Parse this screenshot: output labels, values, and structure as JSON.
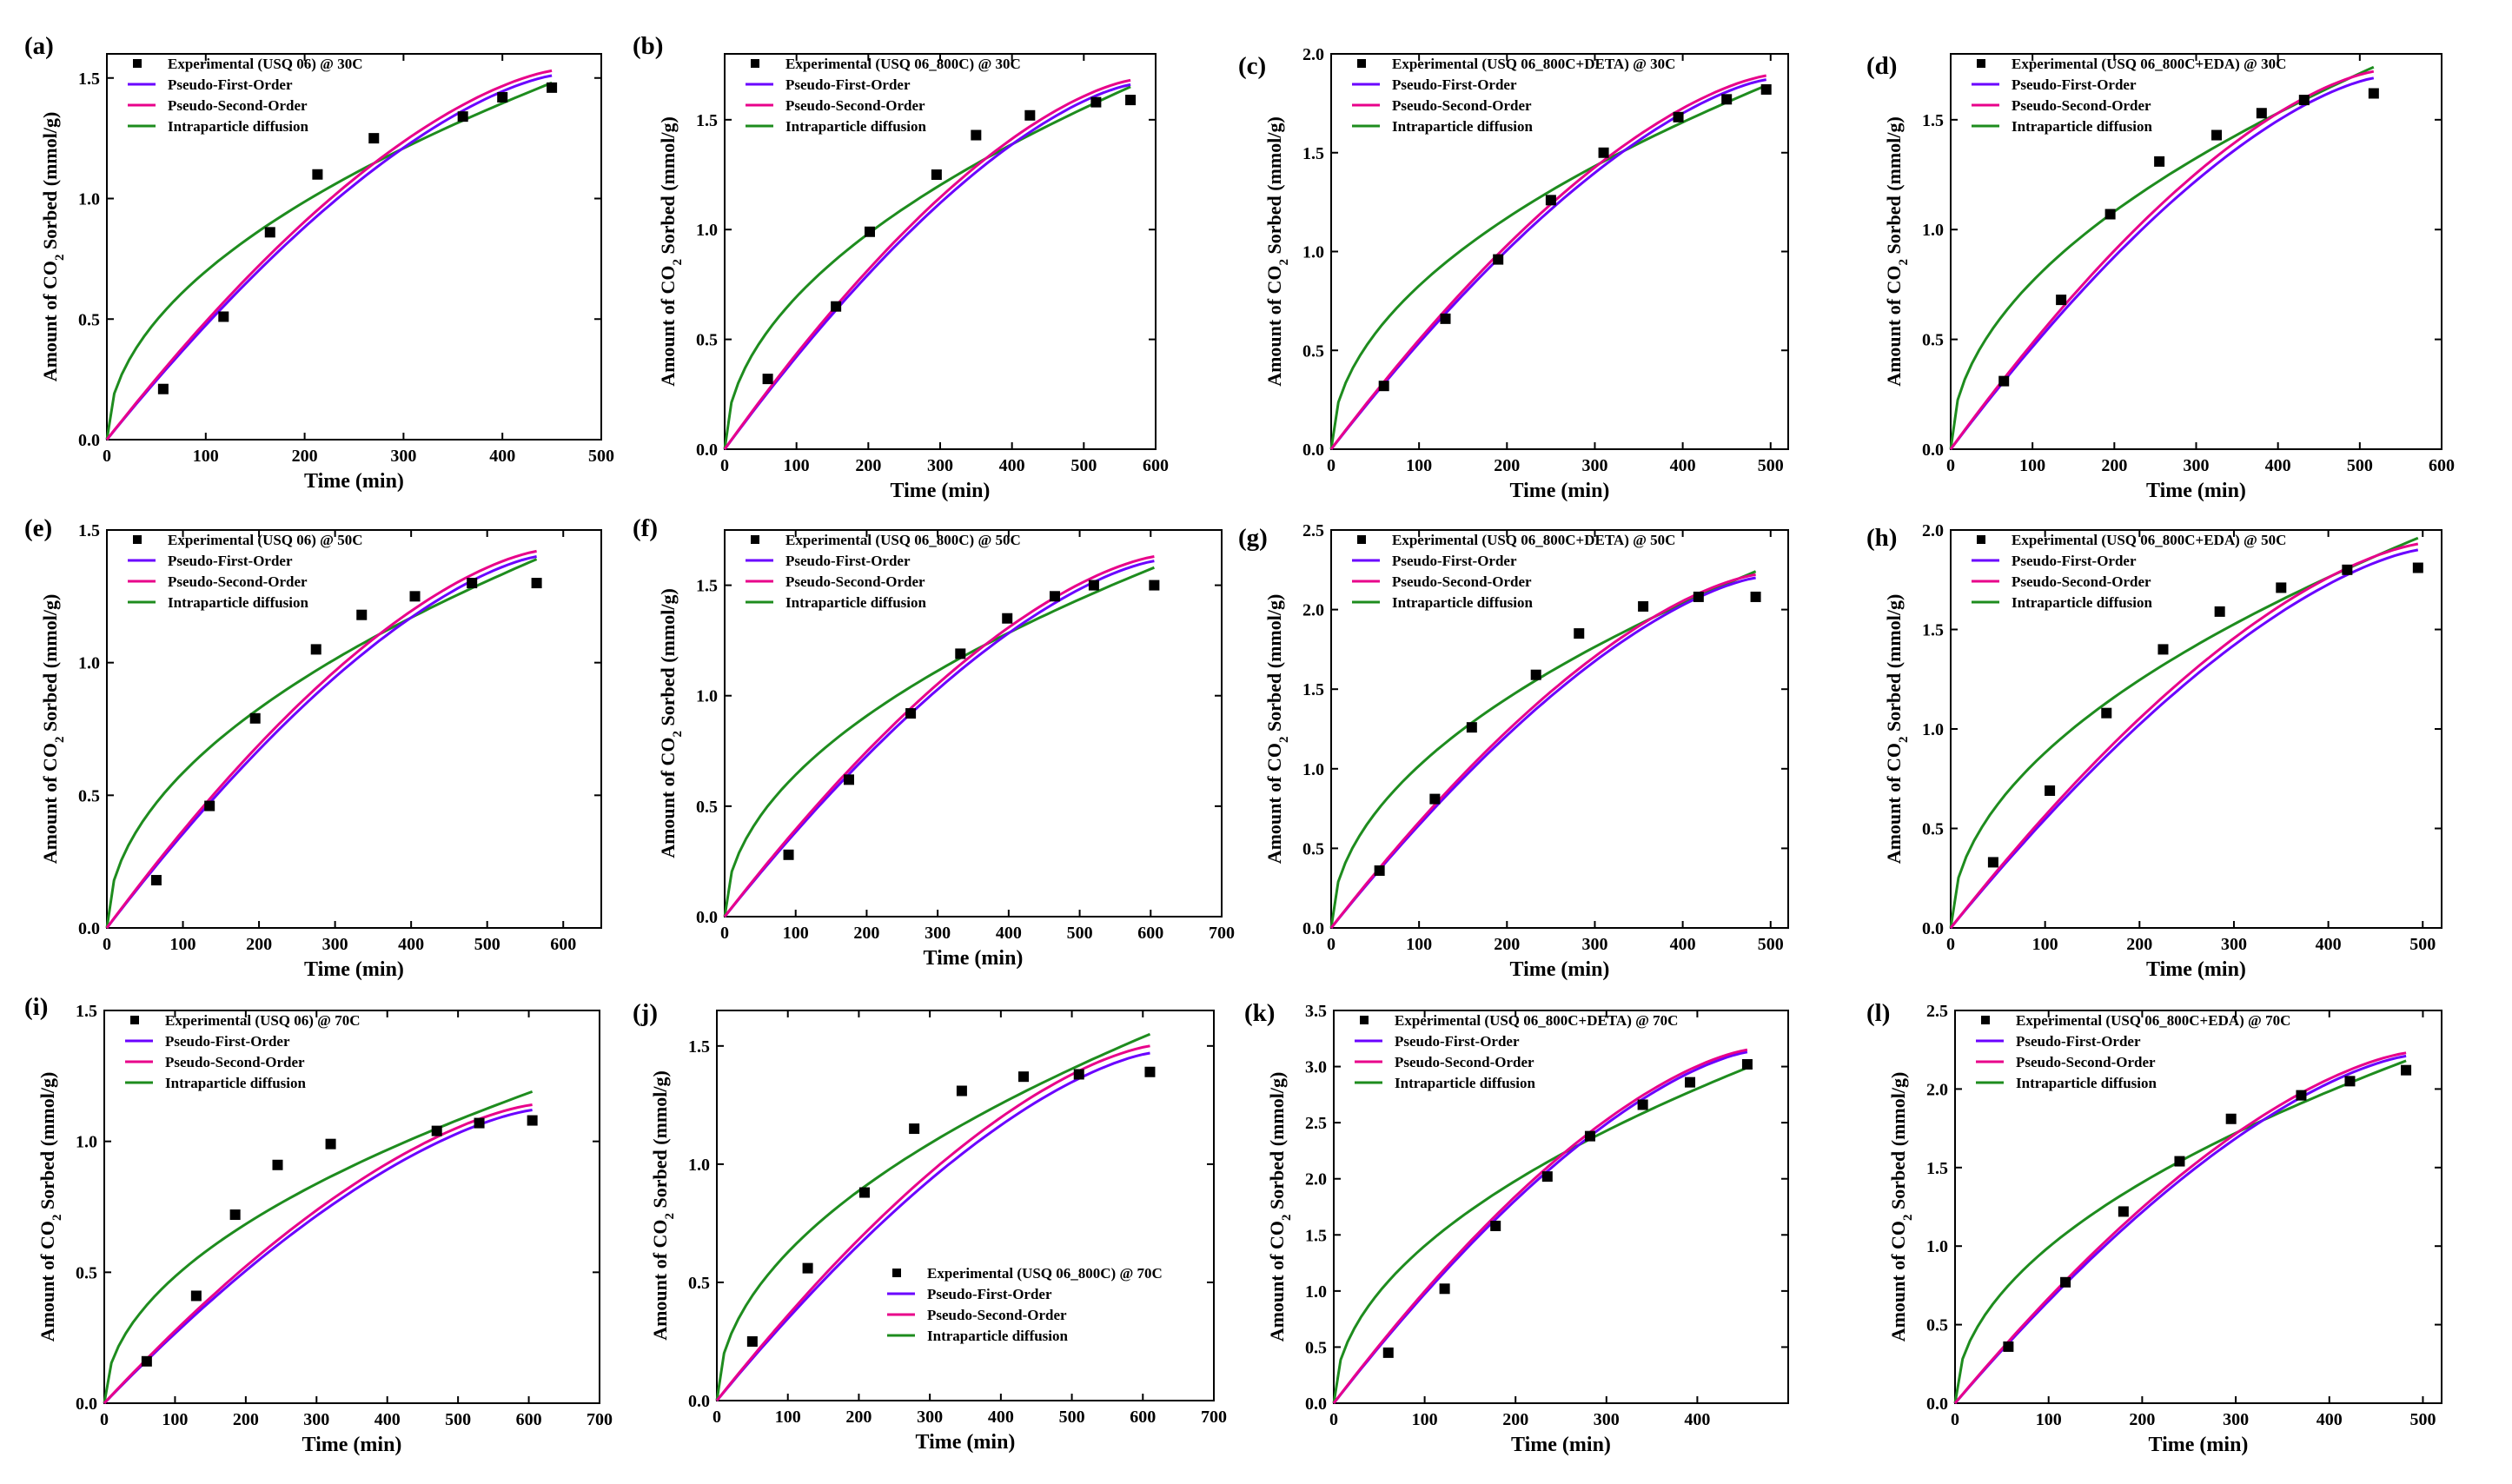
{
  "figure": {
    "theme": "CO2 sorption kinetics model fits"
  },
  "chart_data": [
    {
      "type": "scatter",
      "panel": "(a)",
      "legend": [
        "Experimental (USQ 06) @ 30C",
        "Pseudo-First-Order",
        "Pseudo-Second-Order",
        "Intraparticle diffusion"
      ],
      "legend_position": "top-left",
      "xlabel": "Time (min)",
      "ylabel": "Amount of CO2 Sorbed (mmol/g)",
      "xlim": [
        0,
        500
      ],
      "ylim": [
        0,
        1.6
      ],
      "xticks": [
        0,
        100,
        200,
        300,
        400,
        500
      ],
      "yticks": [
        0.0,
        0.5,
        1.0,
        1.5
      ],
      "experimental": {
        "x": [
          57,
          118,
          165,
          213,
          270,
          360,
          400,
          450
        ],
        "y": [
          0.21,
          0.51,
          0.86,
          1.1,
          1.25,
          1.34,
          1.42,
          1.46
        ]
      },
      "fits": {
        "pfo": {
          "x_end": 450,
          "y_end": 1.51
        },
        "pso": {
          "x_end": 450,
          "y_end": 1.53
        },
        "ipd": {
          "x_end": 450,
          "y_end": 1.48
        }
      }
    },
    {
      "type": "scatter",
      "panel": "(b)",
      "legend": [
        "Experimental (USQ 06_800C) @ 30C",
        "Pseudo-First-Order",
        "Pseudo-Second-Order",
        "Intraparticle diffusion"
      ],
      "legend_position": "top-left",
      "xlabel": "Time (min)",
      "ylabel": "Amount of CO2 Sorbed (mmol/g)",
      "xlim": [
        0,
        600
      ],
      "ylim": [
        0,
        1.8
      ],
      "xticks": [
        0,
        100,
        200,
        300,
        400,
        500,
        600
      ],
      "yticks": [
        0.0,
        0.5,
        1.0,
        1.5
      ],
      "experimental": {
        "x": [
          60,
          155,
          202,
          295,
          350,
          425,
          517,
          565
        ],
        "y": [
          0.32,
          0.65,
          0.99,
          1.25,
          1.43,
          1.52,
          1.58,
          1.59
        ]
      },
      "fits": {
        "pfo": {
          "x_end": 565,
          "y_end": 1.66
        },
        "pso": {
          "x_end": 565,
          "y_end": 1.68
        },
        "ipd": {
          "x_end": 565,
          "y_end": 1.65
        }
      }
    },
    {
      "type": "scatter",
      "panel": "(c)",
      "legend": [
        "Experimental (USQ 06_800C+DETA) @ 30C",
        "Pseudo-First-Order",
        "Pseudo-Second-Order",
        "Intraparticle diffusion"
      ],
      "legend_position": "top-left",
      "xlabel": "Time (min)",
      "ylabel": "Amount of CO2 Sorbed (mmol/g)",
      "xlim": [
        0,
        520
      ],
      "ylim": [
        0,
        2.0
      ],
      "xticks": [
        0,
        100,
        200,
        300,
        400,
        500
      ],
      "yticks": [
        0.0,
        0.5,
        1.0,
        1.5,
        2.0
      ],
      "experimental": {
        "x": [
          60,
          130,
          190,
          250,
          310,
          395,
          450,
          495
        ],
        "y": [
          0.32,
          0.66,
          0.96,
          1.26,
          1.5,
          1.68,
          1.77,
          1.82
        ]
      },
      "fits": {
        "pfo": {
          "x_end": 495,
          "y_end": 1.87
        },
        "pso": {
          "x_end": 495,
          "y_end": 1.89
        },
        "ipd": {
          "x_end": 495,
          "y_end": 1.84
        }
      }
    },
    {
      "type": "scatter",
      "panel": "(d)",
      "legend": [
        "Experimental (USQ 06_800C+EDA) @ 30C",
        "Pseudo-First-Order",
        "Pseudo-Second-Order",
        "Intraparticle diffusion"
      ],
      "legend_position": "top-left",
      "xlabel": "Time (min)",
      "ylabel": "Amount of CO2 Sorbed (mmol/g)",
      "xlim": [
        0,
        600
      ],
      "ylim": [
        0,
        1.8
      ],
      "xticks": [
        0,
        100,
        200,
        300,
        400,
        500,
        600
      ],
      "yticks": [
        0.0,
        0.5,
        1.0,
        1.5
      ],
      "experimental": {
        "x": [
          65,
          135,
          195,
          255,
          325,
          380,
          432,
          517
        ],
        "y": [
          0.31,
          0.68,
          1.07,
          1.31,
          1.43,
          1.53,
          1.59,
          1.62
        ]
      },
      "fits": {
        "pfo": {
          "x_end": 517,
          "y_end": 1.69
        },
        "pso": {
          "x_end": 517,
          "y_end": 1.72
        },
        "ipd": {
          "x_end": 517,
          "y_end": 1.74
        }
      }
    },
    {
      "type": "scatter",
      "panel": "(e)",
      "legend": [
        "Experimental (USQ 06) @ 50C",
        "Pseudo-First-Order",
        "Pseudo-Second-Order",
        "Intraparticle diffusion"
      ],
      "legend_position": "top-left",
      "xlabel": "Time (min)",
      "ylabel": "Amount of CO2 Sorbed (mmol/g)",
      "xlim": [
        0,
        650
      ],
      "ylim": [
        0,
        1.5
      ],
      "xticks": [
        0,
        100,
        200,
        300,
        400,
        500,
        600
      ],
      "yticks": [
        0.0,
        0.5,
        1.0,
        1.5
      ],
      "experimental": {
        "x": [
          65,
          135,
          195,
          275,
          335,
          405,
          480,
          565
        ],
        "y": [
          0.18,
          0.46,
          0.79,
          1.05,
          1.18,
          1.25,
          1.3,
          1.3
        ]
      },
      "fits": {
        "pfo": {
          "x_end": 565,
          "y_end": 1.4
        },
        "pso": {
          "x_end": 565,
          "y_end": 1.42
        },
        "ipd": {
          "x_end": 565,
          "y_end": 1.39
        }
      }
    },
    {
      "type": "scatter",
      "panel": "(f)",
      "legend": [
        "Experimental (USQ 06_800C) @ 50C",
        "Pseudo-First-Order",
        "Pseudo-Second-Order",
        "Intraparticle diffusion"
      ],
      "legend_position": "top-left",
      "xlabel": "Time (min)",
      "ylabel": "Amount of CO2 Sorbed (mmol/g)",
      "xlim": [
        0,
        700
      ],
      "ylim": [
        0,
        1.75
      ],
      "xticks": [
        0,
        100,
        200,
        300,
        400,
        500,
        600,
        700
      ],
      "yticks": [
        0.0,
        0.5,
        1.0,
        1.5
      ],
      "experimental": {
        "x": [
          90,
          175,
          262,
          332,
          398,
          465,
          520,
          605
        ],
        "y": [
          0.28,
          0.62,
          0.92,
          1.19,
          1.35,
          1.45,
          1.5,
          1.5
        ]
      },
      "fits": {
        "pfo": {
          "x_end": 605,
          "y_end": 1.61
        },
        "pso": {
          "x_end": 605,
          "y_end": 1.63
        },
        "ipd": {
          "x_end": 605,
          "y_end": 1.58
        }
      }
    },
    {
      "type": "scatter",
      "panel": "(g)",
      "legend": [
        "Experimental (USQ 06_800C+DETA) @ 50C",
        "Pseudo-First-Order",
        "Pseudo-Second-Order",
        "Intraparticle diffusion"
      ],
      "legend_position": "top-left",
      "xlabel": "Time (min)",
      "ylabel": "Amount of CO2 Sorbed (mmol/g)",
      "xlim": [
        0,
        520
      ],
      "ylim": [
        0,
        2.5
      ],
      "xticks": [
        0,
        100,
        200,
        300,
        400,
        500
      ],
      "yticks": [
        0.0,
        0.5,
        1.0,
        1.5,
        2.0,
        2.5
      ],
      "experimental": {
        "x": [
          55,
          118,
          160,
          233,
          282,
          355,
          418,
          483
        ],
        "y": [
          0.36,
          0.81,
          1.26,
          1.59,
          1.85,
          2.02,
          2.08,
          2.08
        ]
      },
      "fits": {
        "pfo": {
          "x_end": 483,
          "y_end": 2.2
        },
        "pso": {
          "x_end": 483,
          "y_end": 2.22
        },
        "ipd": {
          "x_end": 483,
          "y_end": 2.24
        }
      }
    },
    {
      "type": "scatter",
      "panel": "(h)",
      "legend": [
        "Experimental (USQ 06_800C+EDA) @ 50C",
        "Pseudo-First-Order",
        "Pseudo-Second-Order",
        "Intraparticle diffusion"
      ],
      "legend_position": "top-left",
      "xlabel": "Time (min)",
      "ylabel": "Amount of CO2 Sorbed (mmol/g)",
      "xlim": [
        0,
        520
      ],
      "ylim": [
        0,
        2.0
      ],
      "xticks": [
        0,
        100,
        200,
        300,
        400,
        500
      ],
      "yticks": [
        0.0,
        0.5,
        1.0,
        1.5,
        2.0
      ],
      "experimental": {
        "x": [
          45,
          105,
          165,
          225,
          285,
          350,
          420,
          495
        ],
        "y": [
          0.33,
          0.69,
          1.08,
          1.4,
          1.59,
          1.71,
          1.8,
          1.81
        ]
      },
      "fits": {
        "pfo": {
          "x_end": 495,
          "y_end": 1.9
        },
        "pso": {
          "x_end": 495,
          "y_end": 1.93
        },
        "ipd": {
          "x_end": 495,
          "y_end": 1.96
        }
      }
    },
    {
      "type": "scatter",
      "panel": "(i)",
      "legend": [
        "Experimental (USQ 06) @ 70C",
        "Pseudo-First-Order",
        "Pseudo-Second-Order",
        "Intraparticle diffusion"
      ],
      "legend_position": "top-left",
      "xlabel": "Time (min)",
      "ylabel": "Amount of CO2 Sorbed (mmol/g)",
      "xlim": [
        0,
        700
      ],
      "ylim": [
        0,
        1.5
      ],
      "xticks": [
        0,
        100,
        200,
        300,
        400,
        500,
        600,
        700
      ],
      "yticks": [
        0.0,
        0.5,
        1.0,
        1.5
      ],
      "experimental": {
        "x": [
          60,
          130,
          185,
          245,
          320,
          470,
          530,
          605
        ],
        "y": [
          0.16,
          0.41,
          0.72,
          0.91,
          0.99,
          1.04,
          1.07,
          1.08
        ]
      },
      "fits": {
        "pfo": {
          "x_end": 605,
          "y_end": 1.12
        },
        "pso": {
          "x_end": 605,
          "y_end": 1.14
        },
        "ipd": {
          "x_end": 605,
          "y_end": 1.19
        }
      }
    },
    {
      "type": "scatter",
      "panel": "(j)",
      "legend": [
        "Experimental (USQ 06_800C) @ 70C",
        "Pseudo-First-Order",
        "Pseudo-Second-Order",
        "Intraparticle diffusion"
      ],
      "legend_position": "bottom-right",
      "xlabel": "Time (min)",
      "ylabel": "Amount of CO2 Sorbed (mmol/g)",
      "xlim": [
        0,
        700
      ],
      "ylim": [
        0,
        1.65
      ],
      "xticks": [
        0,
        100,
        200,
        300,
        400,
        500,
        600,
        700
      ],
      "yticks": [
        0.0,
        0.5,
        1.0,
        1.5
      ],
      "experimental": {
        "x": [
          50,
          128,
          208,
          278,
          345,
          432,
          510,
          610
        ],
        "y": [
          0.25,
          0.56,
          0.88,
          1.15,
          1.31,
          1.37,
          1.38,
          1.39
        ]
      },
      "fits": {
        "pfo": {
          "x_end": 610,
          "y_end": 1.47
        },
        "pso": {
          "x_end": 610,
          "y_end": 1.5
        },
        "ipd": {
          "x_end": 610,
          "y_end": 1.55
        }
      }
    },
    {
      "type": "scatter",
      "panel": "(k)",
      "legend": [
        "Experimental (USQ 06_800C+DETA) @ 70C",
        "Pseudo-First-Order",
        "Pseudo-Second-Order",
        "Intraparticle diffusion"
      ],
      "legend_position": "top-left",
      "xlabel": "Time (min)",
      "ylabel": "Amount of CO2 Sorbed (mmol/g)",
      "xlim": [
        0,
        500
      ],
      "ylim": [
        0,
        3.5
      ],
      "xticks": [
        0,
        100,
        200,
        300,
        400
      ],
      "yticks": [
        0.0,
        0.5,
        1.0,
        1.5,
        2.0,
        2.5,
        3.0,
        3.5
      ],
      "experimental": {
        "x": [
          60,
          122,
          178,
          235,
          282,
          340,
          392,
          455
        ],
        "y": [
          0.45,
          1.02,
          1.58,
          2.02,
          2.38,
          2.66,
          2.86,
          3.02
        ]
      },
      "fits": {
        "pfo": {
          "x_end": 455,
          "y_end": 3.13
        },
        "pso": {
          "x_end": 455,
          "y_end": 3.15
        },
        "ipd": {
          "x_end": 455,
          "y_end": 2.99
        }
      }
    },
    {
      "type": "scatter",
      "panel": "(l)",
      "legend": [
        "Experimental (USQ 06_800C+EDA) @ 70C",
        "Pseudo-First-Order",
        "Pseudo-Second-Order",
        "Intraparticle diffusion"
      ],
      "legend_position": "top-left",
      "xlabel": "Time (min)",
      "ylabel": "Amount of CO2 Sorbed (mmol/g)",
      "xlim": [
        0,
        520
      ],
      "ylim": [
        0,
        2.5
      ],
      "xticks": [
        0,
        100,
        200,
        300,
        400,
        500
      ],
      "yticks": [
        0.0,
        0.5,
        1.0,
        1.5,
        2.0,
        2.5
      ],
      "experimental": {
        "x": [
          57,
          118,
          180,
          240,
          295,
          370,
          422,
          482
        ],
        "y": [
          0.36,
          0.77,
          1.22,
          1.54,
          1.81,
          1.96,
          2.05,
          2.12
        ]
      },
      "fits": {
        "pfo": {
          "x_end": 482,
          "y_end": 2.21
        },
        "pso": {
          "x_end": 482,
          "y_end": 2.23
        },
        "ipd": {
          "x_end": 482,
          "y_end": 2.18
        }
      }
    }
  ],
  "colors": {
    "pfo": "#6a00ff",
    "pso": "#e8008a",
    "ipd": "#1e8c1e",
    "marker": "#000000"
  }
}
